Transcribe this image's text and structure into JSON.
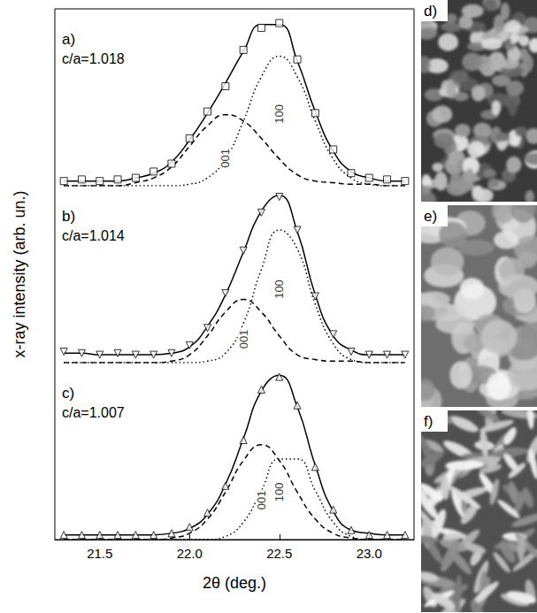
{
  "chart_data": [
    {
      "type": "line",
      "panel": "a)",
      "annotation": "c/a=1.018",
      "xlim": [
        21.25,
        23.25
      ],
      "ylim": [
        0,
        1.12
      ],
      "tick_labels": false,
      "x": [
        21.3,
        21.4,
        21.5,
        21.6,
        21.7,
        21.8,
        21.9,
        22.0,
        22.1,
        22.2,
        22.3,
        22.4,
        22.5,
        22.6,
        22.7,
        22.8,
        22.9,
        23.0,
        23.1,
        23.2
      ],
      "series": [
        {
          "type": "scatter",
          "marker": "square",
          "color": "#000000",
          "values": [
            0.03,
            0.04,
            0.03,
            0.04,
            0.05,
            0.09,
            0.14,
            0.3,
            0.47,
            0.63,
            0.86,
            1.0,
            1.03,
            0.8,
            0.46,
            0.23,
            0.08,
            0.05,
            0.04,
            0.03
          ]
        },
        {
          "type": "line",
          "line_style": "solid",
          "color": "#000000",
          "values": [
            0.03,
            0.03,
            0.03,
            0.03,
            0.05,
            0.08,
            0.15,
            0.29,
            0.46,
            0.65,
            0.85,
            1.02,
            1.02,
            0.79,
            0.47,
            0.22,
            0.09,
            0.05,
            0.03,
            0.03
          ]
        },
        {
          "name": "001",
          "type": "line",
          "line_style": "dashed",
          "color": "#000000",
          "values": [
            0,
            0,
            0,
            0,
            0.02,
            0.05,
            0.12,
            0.25,
            0.38,
            0.45,
            0.41,
            0.3,
            0.17,
            0.07,
            0.03,
            0.02,
            0.01,
            0.01,
            0,
            0
          ]
        },
        {
          "name": "100",
          "type": "line",
          "line_style": "dotted",
          "color": "#000000",
          "values": [
            0,
            0,
            0,
            0,
            0,
            0,
            0,
            0.01,
            0.05,
            0.17,
            0.41,
            0.69,
            0.82,
            0.69,
            0.41,
            0.17,
            0.05,
            0.01,
            0,
            0
          ]
        }
      ]
    },
    {
      "type": "line",
      "panel": "b)",
      "annotation": "c/a=1.014",
      "y_label": "x-ray intensity (arb. un.)",
      "xlim": [
        21.25,
        23.25
      ],
      "ylim": [
        0,
        1.12
      ],
      "tick_labels": false,
      "x": [
        21.3,
        21.4,
        21.5,
        21.6,
        21.7,
        21.8,
        21.9,
        22.0,
        22.1,
        22.2,
        22.3,
        22.4,
        22.5,
        22.6,
        22.7,
        22.8,
        22.9,
        23.0,
        23.1,
        23.2
      ],
      "series": [
        {
          "type": "scatter",
          "marker": "triangle-down",
          "color": "#000000",
          "values": [
            0.07,
            0.06,
            0.05,
            0.06,
            0.05,
            0.05,
            0.06,
            0.11,
            0.22,
            0.44,
            0.71,
            0.95,
            1.05,
            0.84,
            0.42,
            0.18,
            0.07,
            0.05,
            0.05,
            0.05
          ]
        },
        {
          "type": "line",
          "line_style": "solid",
          "color": "#000000",
          "values": [
            0.06,
            0.06,
            0.05,
            0.05,
            0.05,
            0.05,
            0.06,
            0.1,
            0.23,
            0.43,
            0.7,
            0.96,
            1.06,
            0.83,
            0.43,
            0.17,
            0.08,
            0.05,
            0.05,
            0.05
          ]
        },
        {
          "name": "001",
          "type": "line",
          "line_style": "dashed",
          "color": "#000000",
          "values": [
            0,
            0,
            0,
            0,
            0,
            0,
            0.01,
            0.05,
            0.17,
            0.32,
            0.4,
            0.32,
            0.17,
            0.05,
            0.02,
            0.01,
            0.01,
            0,
            0,
            0
          ]
        },
        {
          "name": "100",
          "type": "line",
          "line_style": "dotted",
          "color": "#000000",
          "values": [
            0,
            0,
            0,
            0,
            0,
            0,
            0,
            0,
            0.01,
            0.06,
            0.25,
            0.59,
            0.84,
            0.72,
            0.37,
            0.12,
            0.02,
            0,
            0,
            0
          ]
        }
      ]
    },
    {
      "type": "line",
      "panel": "c)",
      "annotation": "c/a=1.007",
      "x_label": "2θ (deg.)",
      "xlim": [
        21.25,
        23.25
      ],
      "xticks": [
        21.5,
        {
          "value": 22,
          "label": "22.0"
        },
        22.5,
        {
          "value": 23,
          "label": "23.0"
        }
      ],
      "ylim": [
        0,
        1.12
      ],
      "tick_labels": "x",
      "x": [
        21.3,
        21.4,
        21.5,
        21.6,
        21.7,
        21.8,
        21.9,
        22.0,
        22.1,
        22.2,
        22.3,
        22.4,
        22.5,
        22.6,
        22.7,
        22.8,
        22.9,
        23.0,
        23.1,
        23.2
      ],
      "series": [
        {
          "type": "scatter",
          "marker": "triangle-up",
          "color": "#000000",
          "values": [
            0.03,
            0.03,
            0.03,
            0.03,
            0.03,
            0.03,
            0.04,
            0.08,
            0.17,
            0.34,
            0.63,
            0.95,
            1.03,
            0.85,
            0.46,
            0.19,
            0.06,
            0.03,
            0.03,
            0.03
          ]
        },
        {
          "type": "line",
          "line_style": "solid",
          "color": "#000000",
          "values": [
            0.03,
            0.03,
            0.03,
            0.03,
            0.03,
            0.03,
            0.04,
            0.07,
            0.16,
            0.35,
            0.64,
            0.94,
            1.04,
            0.84,
            0.47,
            0.18,
            0.06,
            0.04,
            0.03,
            0.03
          ]
        },
        {
          "name": "001",
          "type": "line",
          "line_style": "dashed",
          "color": "#000000",
          "values": [
            0,
            0,
            0,
            0,
            0,
            0,
            0.01,
            0.04,
            0.13,
            0.3,
            0.5,
            0.6,
            0.5,
            0.3,
            0.13,
            0.04,
            0.01,
            0,
            0,
            0
          ]
        },
        {
          "name": "100",
          "type": "line",
          "line_style": "dotted",
          "color": "#000000",
          "values": [
            0,
            0,
            0,
            0,
            0,
            0,
            0,
            0,
            0,
            0.02,
            0.11,
            0.31,
            0.51,
            0.51,
            0.31,
            0.11,
            0.02,
            0,
            0,
            0
          ]
        }
      ]
    }
  ],
  "images": [
    {
      "label": "d)"
    },
    {
      "label": "e)"
    },
    {
      "label": "f)"
    }
  ]
}
